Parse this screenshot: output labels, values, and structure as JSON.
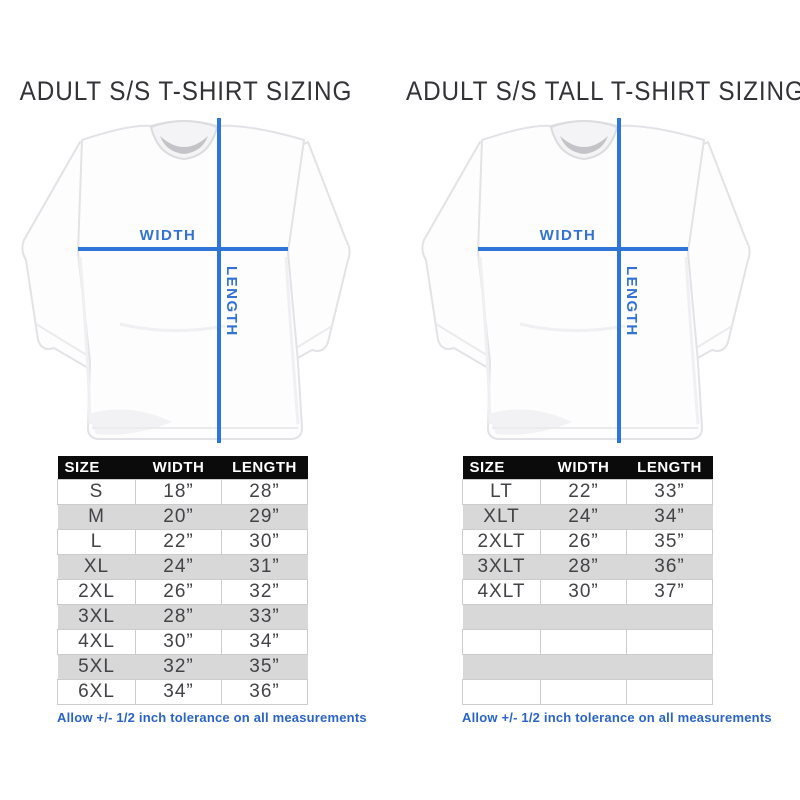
{
  "colors": {
    "blue_line": "#2e75d9",
    "label_blue": "#3173d3",
    "note_blue": "#2a64c8",
    "header_bg": "#0b0b0b",
    "header_text": "#ffffff",
    "row_gray": "#d8d8d8",
    "row_border": "#cccccc",
    "cell_text": "#434347",
    "title_color": "#323237"
  },
  "panels": [
    {
      "title": "ADULT S/S T-SHIRT SIZING",
      "diagram": {
        "width_label": "WIDTH",
        "length_label": "LENGTH"
      },
      "table": {
        "headers": [
          "SIZE",
          "WIDTH",
          "LENGTH"
        ],
        "rows": [
          [
            "S",
            "18”",
            "28”"
          ],
          [
            "M",
            "20”",
            "29”"
          ],
          [
            "L",
            "22”",
            "30”"
          ],
          [
            "XL",
            "24”",
            "31”"
          ],
          [
            "2XL",
            "26”",
            "32”"
          ],
          [
            "3XL",
            "28”",
            "33”"
          ],
          [
            "4XL",
            "30”",
            "34”"
          ],
          [
            "5XL",
            "32”",
            "35”"
          ],
          [
            "6XL",
            "34”",
            "36”"
          ]
        ],
        "empty_rows": 0
      },
      "note": "Allow +/- 1/2 inch tolerance on all measurements"
    },
    {
      "title": "ADULT S/S TALL T-SHIRT SIZING",
      "diagram": {
        "width_label": "WIDTH",
        "length_label": "LENGTH"
      },
      "table": {
        "headers": [
          "SIZE",
          "WIDTH",
          "LENGTH"
        ],
        "rows": [
          [
            "LT",
            "22”",
            "33”"
          ],
          [
            "XLT",
            "24”",
            "34”"
          ],
          [
            "2XLT",
            "26”",
            "35”"
          ],
          [
            "3XLT",
            "28”",
            "36”"
          ],
          [
            "4XLT",
            "30”",
            "37”"
          ]
        ],
        "empty_rows": 4
      },
      "note": "Allow +/- 1/2 inch tolerance on all measurements"
    }
  ]
}
